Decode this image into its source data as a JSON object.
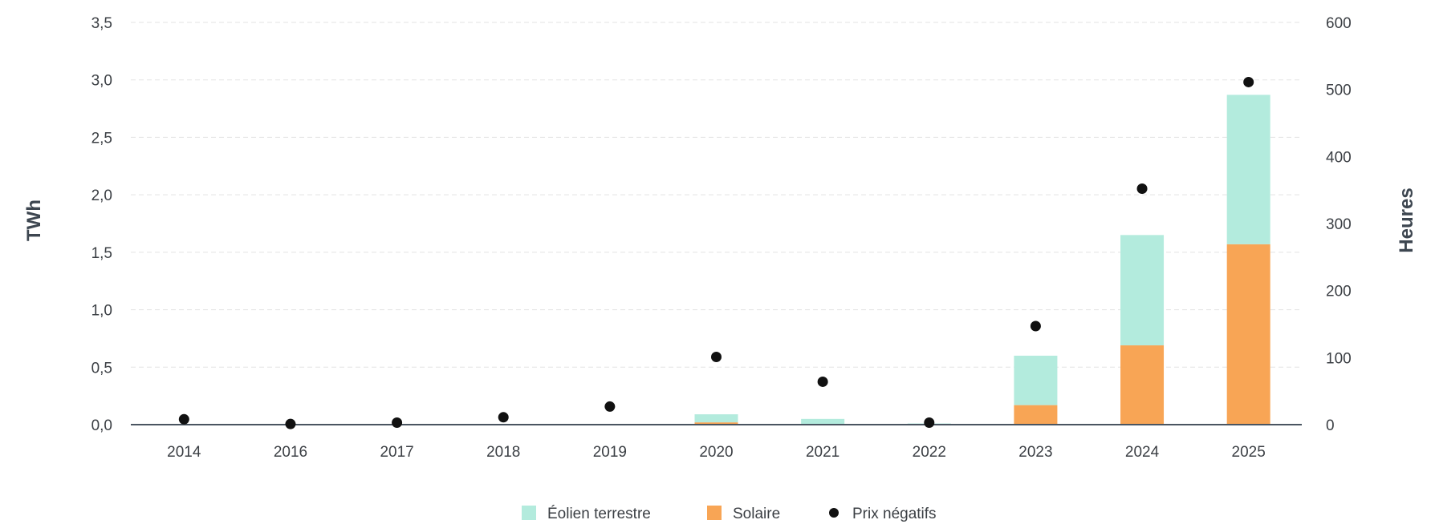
{
  "chart_data": {
    "type": "bar",
    "stacked": true,
    "categories": [
      "2014",
      "2016",
      "2017",
      "2018",
      "2019",
      "2020",
      "2021",
      "2022",
      "2023",
      "2024",
      "2025"
    ],
    "series": [
      {
        "name": "Solaire",
        "kind": "bar",
        "axis": "left",
        "color": "#f8a555",
        "values": [
          0,
          0,
          0,
          0,
          0,
          0.02,
          0.0,
          0.0,
          0.17,
          0.69,
          1.57
        ]
      },
      {
        "name": "Éolien terrestre",
        "kind": "bar",
        "axis": "left",
        "color": "#b3ebdd",
        "values": [
          0,
          0,
          0,
          0,
          0,
          0.07,
          0.05,
          0.01,
          0.43,
          0.96,
          1.3
        ]
      },
      {
        "name": "Prix négatifs",
        "kind": "scatter",
        "axis": "right",
        "color": "#111111",
        "values": [
          8,
          1,
          3,
          11,
          27,
          101,
          64,
          3,
          147,
          352,
          511
        ]
      }
    ],
    "ylabel": "TWh",
    "y2label": "Heures",
    "ylim": [
      0,
      3.5
    ],
    "y2lim": [
      0,
      600
    ],
    "yticks": [
      "0,0",
      "0,5",
      "1,0",
      "1,5",
      "2,0",
      "2,5",
      "3,0",
      "3,5"
    ],
    "yticks_values": [
      0,
      0.5,
      1.0,
      1.5,
      2.0,
      2.5,
      3.0,
      3.5
    ],
    "y2ticks": [
      "0",
      "100",
      "200",
      "300",
      "400",
      "500",
      "600"
    ],
    "y2ticks_values": [
      0,
      100,
      200,
      300,
      400,
      500,
      600
    ],
    "grid": true,
    "legend_position": "bottom-center",
    "legend": [
      {
        "label": "Éolien terrestre",
        "symbol": "square",
        "color": "#b3ebdd"
      },
      {
        "label": "Solaire",
        "symbol": "square",
        "color": "#f8a555"
      },
      {
        "label": "Prix négatifs",
        "symbol": "circle",
        "color": "#111111"
      }
    ]
  }
}
